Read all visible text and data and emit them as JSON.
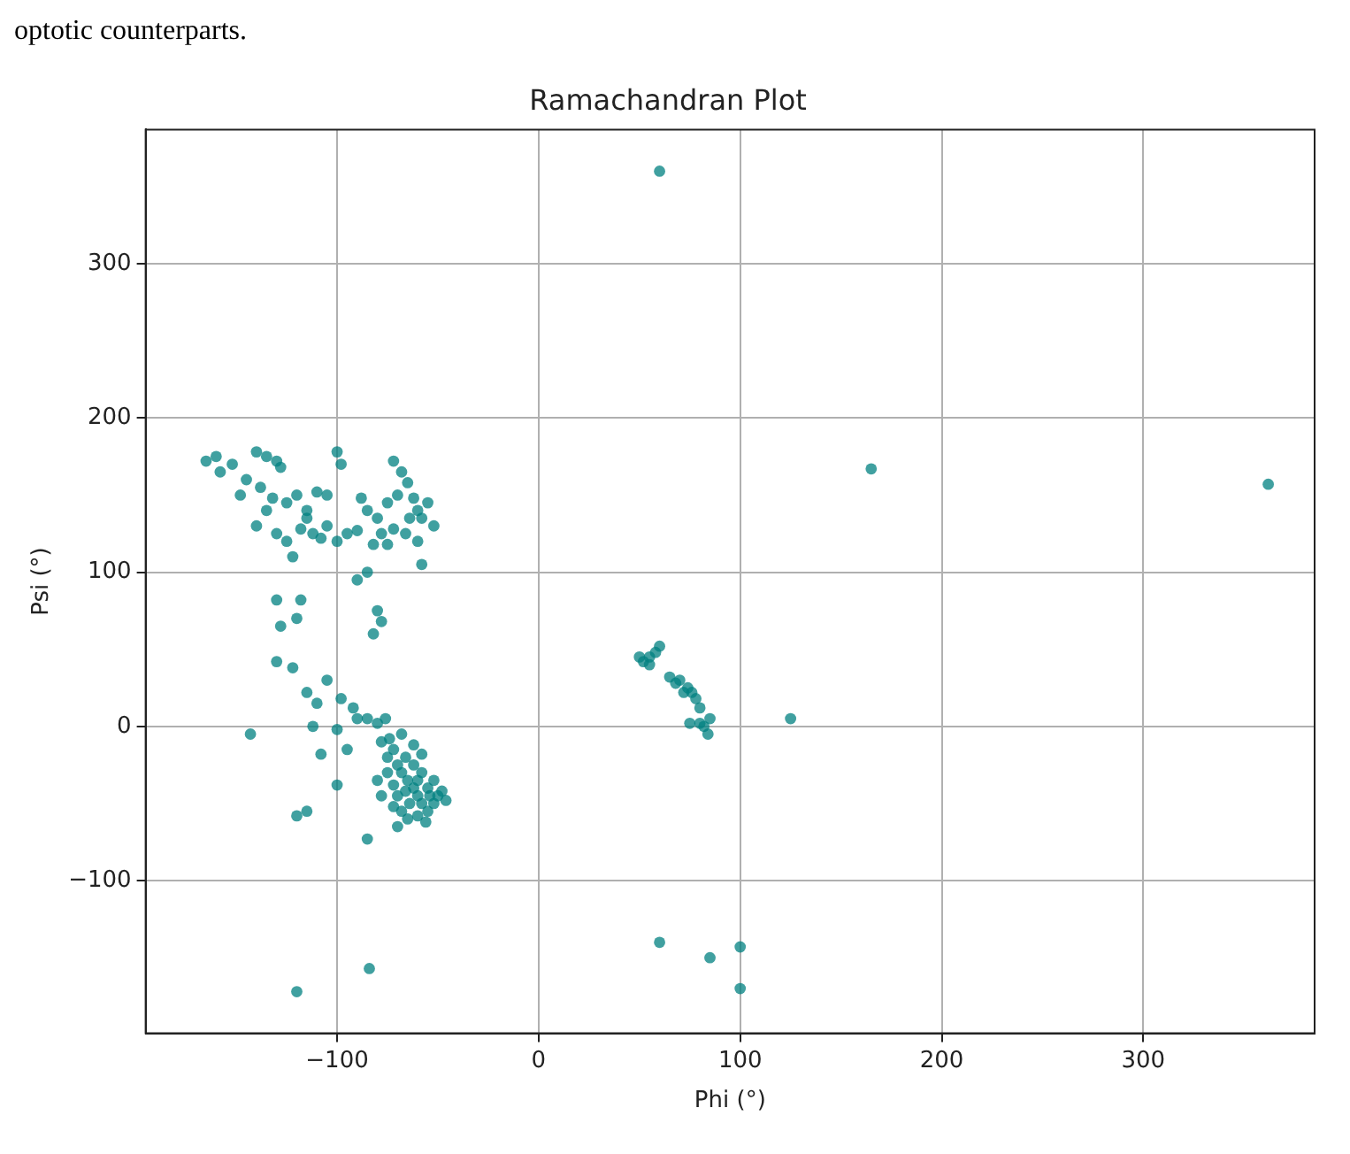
{
  "chart_data": {
    "type": "scatter",
    "title": "Ramachandran Plot",
    "xlabel": "Phi (°)",
    "ylabel": "Psi (°)",
    "annotations": [
      "optotic counterparts."
    ],
    "xlim": [
      -195,
      385
    ],
    "xticks": [
      -100,
      0,
      100,
      200,
      300
    ],
    "ylim": [
      -199,
      387
    ],
    "yticks": [
      -100,
      0,
      100,
      200,
      300
    ],
    "grid": true,
    "marker": "circle",
    "legend": false,
    "series": [
      {
        "color": "#008080",
        "x": [
          -165,
          -160,
          -158,
          -152,
          -148,
          -140,
          -135,
          -130,
          -128,
          -145,
          -138,
          -132,
          -125,
          -120,
          -115,
          -110,
          -105,
          -140,
          -130,
          -125,
          -118,
          -112,
          -108,
          -100,
          -95,
          -90,
          -122,
          -115,
          -105,
          -135,
          -100,
          -98,
          -88,
          -85,
          -80,
          -78,
          -75,
          -72,
          -70,
          -68,
          -65,
          -62,
          -60,
          -58,
          -55,
          -52,
          -72,
          -64,
          -66,
          -75,
          -60,
          -82,
          -58,
          -90,
          -85,
          -80,
          -78,
          -82,
          -130,
          -128,
          -120,
          -118,
          -130,
          -122,
          -115,
          -110,
          -105,
          -98,
          -92,
          -90,
          -85,
          -80,
          -112,
          -100,
          -95,
          -108,
          -100,
          -85,
          -120,
          -115,
          -143,
          -120,
          -84,
          -78,
          -75,
          -72,
          -70,
          -68,
          -65,
          -62,
          -60,
          -58,
          -55,
          -52,
          -50,
          -48,
          -46,
          -55,
          -60,
          -65,
          -68,
          -70,
          -72,
          -75,
          -80,
          -78,
          -62,
          -58,
          -52,
          -56,
          -64,
          -60,
          -66,
          -54,
          -72,
          -70,
          -74,
          -76,
          -68,
          -62,
          -58,
          -66,
          50,
          52,
          55,
          58,
          60,
          55,
          65,
          68,
          70,
          72,
          74,
          76,
          78,
          80,
          75,
          80,
          82,
          85,
          84,
          125,
          60,
          85,
          100,
          100,
          165,
          60,
          362
        ],
        "values": [
          172,
          175,
          165,
          170,
          150,
          178,
          175,
          172,
          168,
          160,
          155,
          148,
          145,
          150,
          140,
          152,
          150,
          130,
          125,
          120,
          128,
          125,
          122,
          120,
          125,
          127,
          110,
          135,
          130,
          140,
          178,
          170,
          148,
          140,
          135,
          125,
          118,
          128,
          150,
          165,
          158,
          148,
          140,
          135,
          145,
          130,
          172,
          135,
          125,
          145,
          120,
          118,
          105,
          95,
          100,
          75,
          68,
          60,
          82,
          65,
          70,
          82,
          42,
          38,
          22,
          15,
          30,
          18,
          12,
          5,
          5,
          2,
          0,
          -2,
          -15,
          -18,
          -38,
          -73,
          -58,
          -55,
          -5,
          -172,
          -157,
          -10,
          -20,
          -15,
          -25,
          -30,
          -35,
          -40,
          -45,
          -50,
          -40,
          -35,
          -45,
          -42,
          -48,
          -55,
          -58,
          -60,
          -55,
          -45,
          -38,
          -30,
          -35,
          -45,
          -25,
          -30,
          -50,
          -62,
          -50,
          -35,
          -42,
          -45,
          -52,
          -65,
          -8,
          5,
          -5,
          -12,
          -18,
          -20,
          45,
          42,
          45,
          48,
          52,
          40,
          32,
          28,
          30,
          22,
          25,
          22,
          18,
          12,
          2,
          2,
          0,
          5,
          -5,
          5,
          -140,
          -150,
          -143,
          -170,
          167,
          360,
          157
        ]
      }
    ]
  }
}
